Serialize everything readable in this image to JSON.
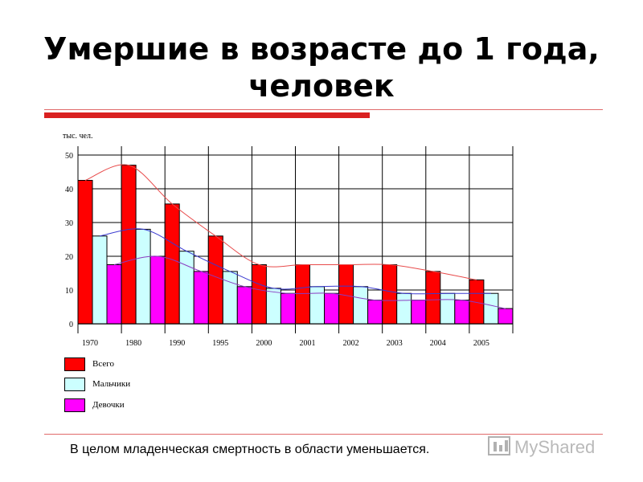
{
  "title": "Умершие в возрасте до 1 года, человек",
  "caption": "В целом младенческая смертность в области  уменьшается.",
  "watermark": "MyShared",
  "colors": {
    "total": "#ff0000",
    "boys": "#ccffff",
    "girls": "#ff00ff",
    "grid": "#000000"
  },
  "chart_data": {
    "type": "bar",
    "unit_label": "тыс. чел.",
    "yticks": [
      0,
      10,
      20,
      30,
      40,
      50
    ],
    "categories": [
      "1970",
      "1980",
      "1990",
      "1995",
      "2000",
      "2001",
      "2002",
      "2003",
      "2004",
      "2005"
    ],
    "series": [
      {
        "name": "Всего",
        "color": "#ff0000",
        "values": [
          42.5,
          47,
          35.5,
          26,
          17.5,
          17.5,
          17.5,
          17.5,
          15.5,
          13
        ]
      },
      {
        "name": "Мальчики",
        "color": "#ccffff",
        "values": [
          26,
          28,
          21.5,
          15.5,
          10.5,
          11,
          11,
          9,
          9,
          9
        ]
      },
      {
        "name": "Девочки",
        "color": "#ff00ff",
        "values": [
          17.5,
          20,
          15.5,
          11,
          9,
          9,
          7,
          7,
          7,
          4.5
        ]
      }
    ],
    "trend_colors": [
      "#e84a4a",
      "#3a3ad0",
      "#8a3ac0"
    ],
    "ylim": [
      0,
      50
    ],
    "grid": true,
    "legend_position": "bottom-left"
  }
}
